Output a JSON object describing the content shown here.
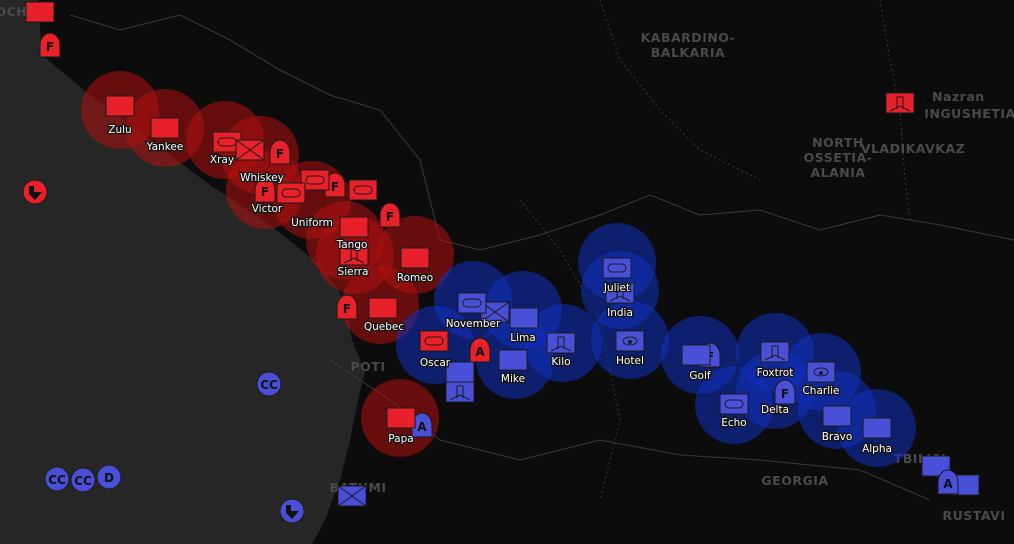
{
  "colors": {
    "sea": "#262626",
    "land": "#0c0c0c",
    "border": "#3a3a3a",
    "red_force": "#e8202a",
    "red_range": "#b01010",
    "blue_force": "#4a4fd8",
    "blue_range": "#1030c0",
    "place_label": "#4a4a4a"
  },
  "places": [
    {
      "name": "SOCHI"
    },
    {
      "name": "KABARDINO-"
    },
    {
      "name": "BALKARIA"
    },
    {
      "name": "NORTH"
    },
    {
      "name": "OSSETIA-"
    },
    {
      "name": "ALANIA"
    },
    {
      "name": "VLADIKAVKAZ"
    },
    {
      "name": "INGUSHETIA"
    },
    {
      "name": "Nazran"
    },
    {
      "name": "GEORGIA"
    },
    {
      "name": "RUSTAVI"
    },
    {
      "name": "POTI"
    },
    {
      "name": "BATUMI"
    },
    {
      "name": "TBILISI"
    }
  ],
  "units": [
    {
      "label": "Zulu",
      "side": "red",
      "symbol": "plain"
    },
    {
      "label": "Yankee",
      "side": "red",
      "symbol": "plain"
    },
    {
      "label": "Xray",
      "side": "red",
      "symbol": "armor"
    },
    {
      "label": "Whiskey",
      "side": "red",
      "symbol": "infantry"
    },
    {
      "label": "Victor",
      "side": "red",
      "symbol": "dome",
      "letter": "F"
    },
    {
      "label": "Uniform",
      "side": "red",
      "symbol": "armor"
    },
    {
      "label": "Tango",
      "side": "red",
      "symbol": "plain"
    },
    {
      "label": "Sierra",
      "side": "red",
      "symbol": "tower"
    },
    {
      "label": "Romeo",
      "side": "red",
      "symbol": "plain"
    },
    {
      "label": "Quebec",
      "side": "red",
      "symbol": "plain"
    },
    {
      "label": "Papa",
      "side": "red",
      "symbol": "plain"
    },
    {
      "label": "Oscar",
      "side": "blue",
      "symbol": "armor",
      "symbol_side": "red"
    },
    {
      "label": "November",
      "side": "blue",
      "symbol": "armor"
    },
    {
      "label": "Lima",
      "side": "blue",
      "symbol": "plain"
    },
    {
      "label": "Mike",
      "side": "blue",
      "symbol": "plain"
    },
    {
      "label": "Kilo",
      "side": "blue",
      "symbol": "tower"
    },
    {
      "label": "Juliet",
      "side": "blue",
      "symbol": "armor"
    },
    {
      "label": "India",
      "side": "blue",
      "symbol": "tower"
    },
    {
      "label": "Hotel",
      "side": "blue",
      "symbol": "radar"
    },
    {
      "label": "Golf",
      "side": "blue",
      "symbol": "plain"
    },
    {
      "label": "Foxtrot",
      "side": "blue",
      "symbol": "tower"
    },
    {
      "label": "Echo",
      "side": "blue",
      "symbol": "armor"
    },
    {
      "label": "Delta",
      "side": "blue",
      "symbol": "dome",
      "letter": "F"
    },
    {
      "label": "Charlie",
      "side": "blue",
      "symbol": "radar"
    },
    {
      "label": "Bravo",
      "side": "blue",
      "symbol": "plain"
    },
    {
      "label": "Alpha",
      "side": "blue",
      "symbol": "plain"
    }
  ],
  "extra_symbols": [
    {
      "side": "red",
      "symbol": "plain"
    },
    {
      "side": "red",
      "symbol": "dome",
      "letter": "F"
    },
    {
      "side": "red",
      "symbol": "circle-arrow"
    },
    {
      "side": "red",
      "symbol": "dome",
      "letter": "F"
    },
    {
      "side": "red",
      "symbol": "dome",
      "letter": "F"
    },
    {
      "side": "red",
      "symbol": "dome",
      "letter": "F"
    },
    {
      "side": "red",
      "symbol": "armor"
    },
    {
      "side": "red",
      "symbol": "armor"
    },
    {
      "side": "red",
      "symbol": "dome",
      "letter": "F"
    },
    {
      "side": "red",
      "symbol": "dome",
      "letter": "A"
    },
    {
      "side": "red",
      "symbol": "tower"
    },
    {
      "side": "blue",
      "symbol": "dome",
      "letter": "A"
    },
    {
      "side": "blue",
      "symbol": "infantry"
    },
    {
      "side": "blue",
      "symbol": "tower"
    },
    {
      "side": "blue",
      "symbol": "dome",
      "letter": "F"
    },
    {
      "side": "blue",
      "symbol": "plain"
    },
    {
      "side": "blue",
      "symbol": "circle",
      "letter": "CC"
    },
    {
      "side": "blue",
      "symbol": "circle",
      "letter": "D"
    },
    {
      "side": "blue",
      "symbol": "circle",
      "letter": "CC"
    },
    {
      "side": "blue",
      "symbol": "circle",
      "letter": "CC"
    },
    {
      "side": "blue",
      "symbol": "circle-arrow"
    },
    {
      "side": "blue",
      "symbol": "infantry"
    },
    {
      "side": "blue",
      "symbol": "plain"
    },
    {
      "side": "blue",
      "symbol": "plain"
    },
    {
      "side": "blue",
      "symbol": "dome",
      "letter": "A"
    }
  ]
}
